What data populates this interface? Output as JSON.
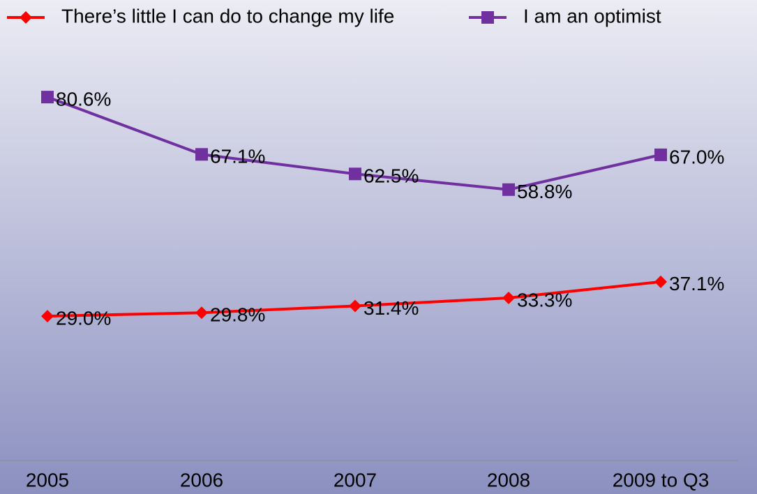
{
  "chart_data": {
    "type": "line",
    "categories": [
      "2005",
      "2006",
      "2007",
      "2008",
      "2009 to Q3"
    ],
    "series": [
      {
        "name": "There’s little I can do to change my life",
        "color": "#ff0000",
        "marker": "diamond",
        "values": [
          29.0,
          29.8,
          31.4,
          33.3,
          37.1
        ],
        "value_labels": [
          "29.0%",
          "29.8%",
          "31.4%",
          "33.3%",
          "37.1%"
        ]
      },
      {
        "name": "I am an optimist",
        "color": "#7030a0",
        "marker": "square",
        "values": [
          80.6,
          67.1,
          62.5,
          58.8,
          67.0
        ],
        "value_labels": [
          "80.6%",
          "67.1%",
          "62.5%",
          "58.8%",
          "67.0%"
        ]
      }
    ],
    "ylim": [
      -5,
      95
    ],
    "legend": "top"
  }
}
